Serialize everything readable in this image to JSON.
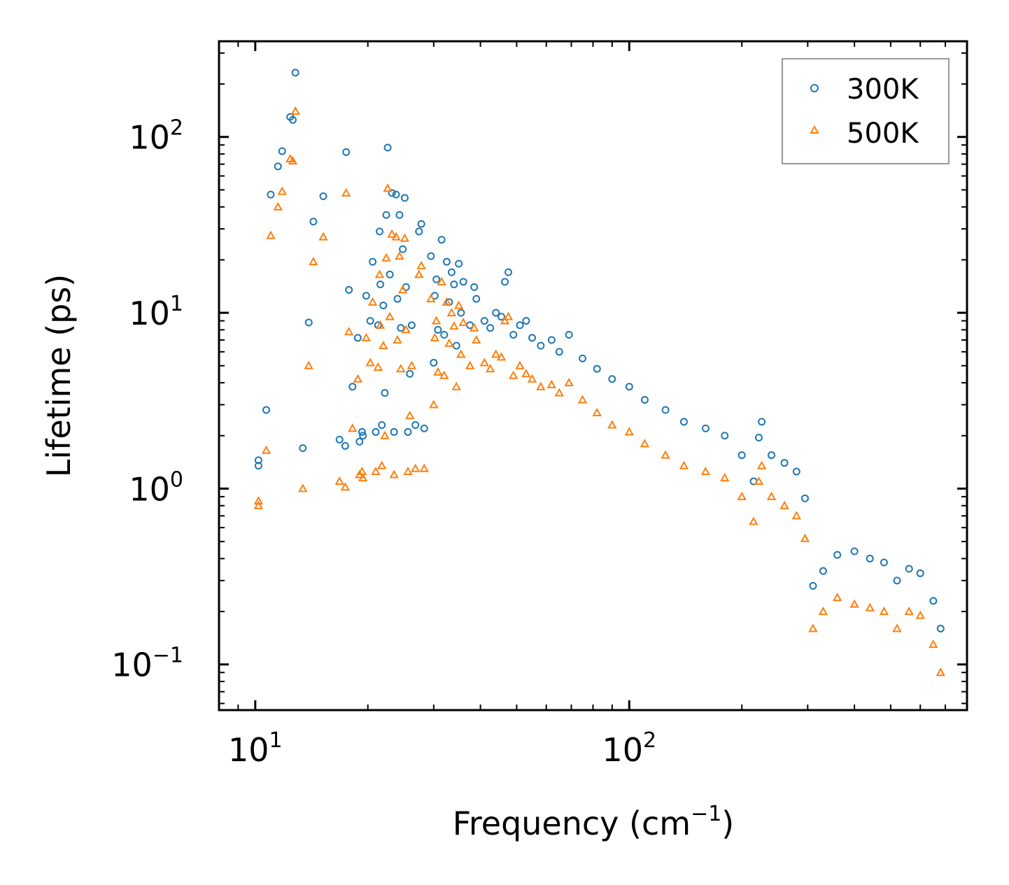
{
  "chart_data": {
    "type": "scatter",
    "title": "",
    "xlabel": "Frequency (cm",
    "xlabel_sup": "−1",
    "xlabel_tail": ")",
    "ylabel": "Lifetime (ps)",
    "xscale": "log",
    "yscale": "log",
    "xlim": [
      8,
      800
    ],
    "ylim": [
      0.055,
      350
    ],
    "x_ticks": [
      {
        "value": 10,
        "base": "10",
        "exp": "1"
      },
      {
        "value": 100,
        "base": "10",
        "exp": "2"
      }
    ],
    "y_ticks": [
      {
        "value": 0.1,
        "base": "10",
        "exp": "−1"
      },
      {
        "value": 1,
        "base": "10",
        "exp": "0"
      },
      {
        "value": 10,
        "base": "10",
        "exp": "1"
      },
      {
        "value": 100,
        "base": "10",
        "exp": "2"
      }
    ],
    "legend_position": "top-right",
    "series": [
      {
        "name": "300K",
        "marker": "circle",
        "color": "#1f77b4",
        "points": [
          [
            10.2,
            1.45
          ],
          [
            10.2,
            1.35
          ],
          [
            10.7,
            2.8
          ],
          [
            11.0,
            47
          ],
          [
            11.5,
            68
          ],
          [
            11.8,
            83
          ],
          [
            12.4,
            130
          ],
          [
            12.6,
            125
          ],
          [
            12.8,
            232
          ],
          [
            13.4,
            1.7
          ],
          [
            13.9,
            8.8
          ],
          [
            14.3,
            33
          ],
          [
            15.2,
            46
          ],
          [
            16.8,
            1.9
          ],
          [
            17.4,
            1.75
          ],
          [
            17.5,
            82
          ],
          [
            17.8,
            13.5
          ],
          [
            18.2,
            3.8
          ],
          [
            18.8,
            7.2
          ],
          [
            19.0,
            1.85
          ],
          [
            19.3,
            2.1
          ],
          [
            19.4,
            2.0
          ],
          [
            19.8,
            12.5
          ],
          [
            20.3,
            9.0
          ],
          [
            20.6,
            19.5
          ],
          [
            21.0,
            2.1
          ],
          [
            21.3,
            8.5
          ],
          [
            21.5,
            29
          ],
          [
            21.6,
            14.5
          ],
          [
            21.8,
            2.3
          ],
          [
            22.0,
            11.0
          ],
          [
            22.2,
            3.5
          ],
          [
            22.4,
            36
          ],
          [
            22.6,
            87
          ],
          [
            22.9,
            16.5
          ],
          [
            23.2,
            48
          ],
          [
            23.5,
            2.1
          ],
          [
            23.8,
            47
          ],
          [
            24.0,
            12.0
          ],
          [
            24.3,
            36
          ],
          [
            24.5,
            8.2
          ],
          [
            24.8,
            23
          ],
          [
            25.1,
            45
          ],
          [
            25.3,
            14.0
          ],
          [
            25.6,
            2.1
          ],
          [
            25.9,
            4.5
          ],
          [
            26.2,
            8.5
          ],
          [
            26.8,
            2.3
          ],
          [
            27.4,
            29
          ],
          [
            27.8,
            32
          ],
          [
            28.3,
            2.2
          ],
          [
            29.5,
            21
          ],
          [
            30.0,
            5.2
          ],
          [
            30.2,
            12.5
          ],
          [
            30.5,
            15.5
          ],
          [
            30.8,
            8.0
          ],
          [
            31.5,
            26
          ],
          [
            32.0,
            7.5
          ],
          [
            32.5,
            19.5
          ],
          [
            33.0,
            11.5
          ],
          [
            33.5,
            17
          ],
          [
            34.0,
            14.5
          ],
          [
            34.5,
            6.5
          ],
          [
            35.0,
            19
          ],
          [
            35.5,
            10
          ],
          [
            36.0,
            15
          ],
          [
            37.5,
            8.5
          ],
          [
            38.5,
            14
          ],
          [
            39.0,
            12
          ],
          [
            41.0,
            9.0
          ],
          [
            42.5,
            8.2
          ],
          [
            44.0,
            10
          ],
          [
            45.5,
            9.5
          ],
          [
            46.5,
            15
          ],
          [
            47.5,
            17
          ],
          [
            49.0,
            7.5
          ],
          [
            51.0,
            8.5
          ],
          [
            53.0,
            9.0
          ],
          [
            55.0,
            7.2
          ],
          [
            58.0,
            6.5
          ],
          [
            62.0,
            7.0
          ],
          [
            65.0,
            6.0
          ],
          [
            69.0,
            7.5
          ],
          [
            75.0,
            5.5
          ],
          [
            82.0,
            4.8
          ],
          [
            90.0,
            4.2
          ],
          [
            100.0,
            3.8
          ],
          [
            110.0,
            3.2
          ],
          [
            125.0,
            2.8
          ],
          [
            140.0,
            2.4
          ],
          [
            160.0,
            2.2
          ],
          [
            180.0,
            2.0
          ],
          [
            200.0,
            1.55
          ],
          [
            215.0,
            1.1
          ],
          [
            222.0,
            1.95
          ],
          [
            226.0,
            2.4
          ],
          [
            240.0,
            1.55
          ],
          [
            260.0,
            1.4
          ],
          [
            280.0,
            1.25
          ],
          [
            295.0,
            0.88
          ],
          [
            310.0,
            0.28
          ],
          [
            330.0,
            0.34
          ],
          [
            360.0,
            0.42
          ],
          [
            400.0,
            0.44
          ],
          [
            440.0,
            0.4
          ],
          [
            480.0,
            0.38
          ],
          [
            520.0,
            0.3
          ],
          [
            560.0,
            0.35
          ],
          [
            600.0,
            0.33
          ],
          [
            650.0,
            0.23
          ],
          [
            680.0,
            0.16
          ]
        ]
      },
      {
        "name": "500K",
        "marker": "triangle",
        "color": "#ff7f0e",
        "points": [
          [
            10.2,
            0.85
          ],
          [
            10.2,
            0.8
          ],
          [
            10.7,
            1.65
          ],
          [
            11.0,
            27.5
          ],
          [
            11.5,
            40
          ],
          [
            11.8,
            49
          ],
          [
            12.4,
            75
          ],
          [
            12.6,
            73
          ],
          [
            12.8,
            140
          ],
          [
            13.4,
            1.0
          ],
          [
            13.9,
            5.0
          ],
          [
            14.3,
            19.5
          ],
          [
            15.2,
            27
          ],
          [
            16.8,
            1.1
          ],
          [
            17.4,
            1.02
          ],
          [
            17.5,
            48
          ],
          [
            17.8,
            7.8
          ],
          [
            18.2,
            2.2
          ],
          [
            18.8,
            4.2
          ],
          [
            19.0,
            1.2
          ],
          [
            19.3,
            1.25
          ],
          [
            19.4,
            1.15
          ],
          [
            19.8,
            7.2
          ],
          [
            20.3,
            5.2
          ],
          [
            20.6,
            11.5
          ],
          [
            21.0,
            1.25
          ],
          [
            21.3,
            4.9
          ],
          [
            21.5,
            16.5
          ],
          [
            21.6,
            8.5
          ],
          [
            21.8,
            1.35
          ],
          [
            22.0,
            6.5
          ],
          [
            22.2,
            2.0
          ],
          [
            22.4,
            20.5
          ],
          [
            22.6,
            51
          ],
          [
            22.9,
            9.5
          ],
          [
            23.2,
            28
          ],
          [
            23.5,
            1.2
          ],
          [
            23.8,
            27
          ],
          [
            24.0,
            7.0
          ],
          [
            24.3,
            21
          ],
          [
            24.5,
            4.8
          ],
          [
            24.8,
            13.5
          ],
          [
            25.1,
            26.5
          ],
          [
            25.3,
            8.0
          ],
          [
            25.6,
            1.25
          ],
          [
            25.9,
            2.6
          ],
          [
            26.2,
            5.0
          ],
          [
            26.8,
            1.3
          ],
          [
            27.4,
            16.5
          ],
          [
            27.8,
            18.5
          ],
          [
            28.3,
            1.3
          ],
          [
            29.5,
            12
          ],
          [
            30.0,
            3.0
          ],
          [
            30.2,
            7.2
          ],
          [
            30.5,
            9.0
          ],
          [
            30.8,
            4.6
          ],
          [
            31.5,
            15
          ],
          [
            32.0,
            4.4
          ],
          [
            32.5,
            11.5
          ],
          [
            33.0,
            6.7
          ],
          [
            33.5,
            10
          ],
          [
            34.0,
            8.4
          ],
          [
            34.5,
            3.8
          ],
          [
            35.0,
            11
          ],
          [
            35.5,
            5.8
          ],
          [
            36.0,
            8.8
          ],
          [
            37.5,
            5.0
          ],
          [
            38.5,
            8.2
          ],
          [
            39.0,
            7.0
          ],
          [
            41.0,
            5.2
          ],
          [
            42.5,
            4.8
          ],
          [
            44.0,
            5.8
          ],
          [
            45.5,
            5.6
          ],
          [
            46.5,
            9.0
          ],
          [
            47.5,
            9.5
          ],
          [
            49.0,
            4.4
          ],
          [
            51.0,
            5.0
          ],
          [
            53.0,
            4.5
          ],
          [
            55.0,
            4.2
          ],
          [
            58.0,
            3.8
          ],
          [
            62.0,
            3.9
          ],
          [
            65.0,
            3.5
          ],
          [
            69.0,
            4.0
          ],
          [
            75.0,
            3.2
          ],
          [
            82.0,
            2.7
          ],
          [
            90.0,
            2.3
          ],
          [
            100.0,
            2.1
          ],
          [
            110.0,
            1.8
          ],
          [
            125.0,
            1.55
          ],
          [
            140.0,
            1.35
          ],
          [
            160.0,
            1.25
          ],
          [
            180.0,
            1.15
          ],
          [
            200.0,
            0.9
          ],
          [
            215.0,
            0.65
          ],
          [
            222.0,
            1.1
          ],
          [
            226.0,
            1.35
          ],
          [
            240.0,
            0.9
          ],
          [
            260.0,
            0.8
          ],
          [
            280.0,
            0.7
          ],
          [
            295.0,
            0.52
          ],
          [
            310.0,
            0.16
          ],
          [
            330.0,
            0.2
          ],
          [
            360.0,
            0.24
          ],
          [
            400.0,
            0.22
          ],
          [
            440.0,
            0.21
          ],
          [
            480.0,
            0.2
          ],
          [
            520.0,
            0.16
          ],
          [
            560.0,
            0.2
          ],
          [
            600.0,
            0.19
          ],
          [
            650.0,
            0.13
          ],
          [
            680.0,
            0.09
          ]
        ]
      }
    ]
  }
}
